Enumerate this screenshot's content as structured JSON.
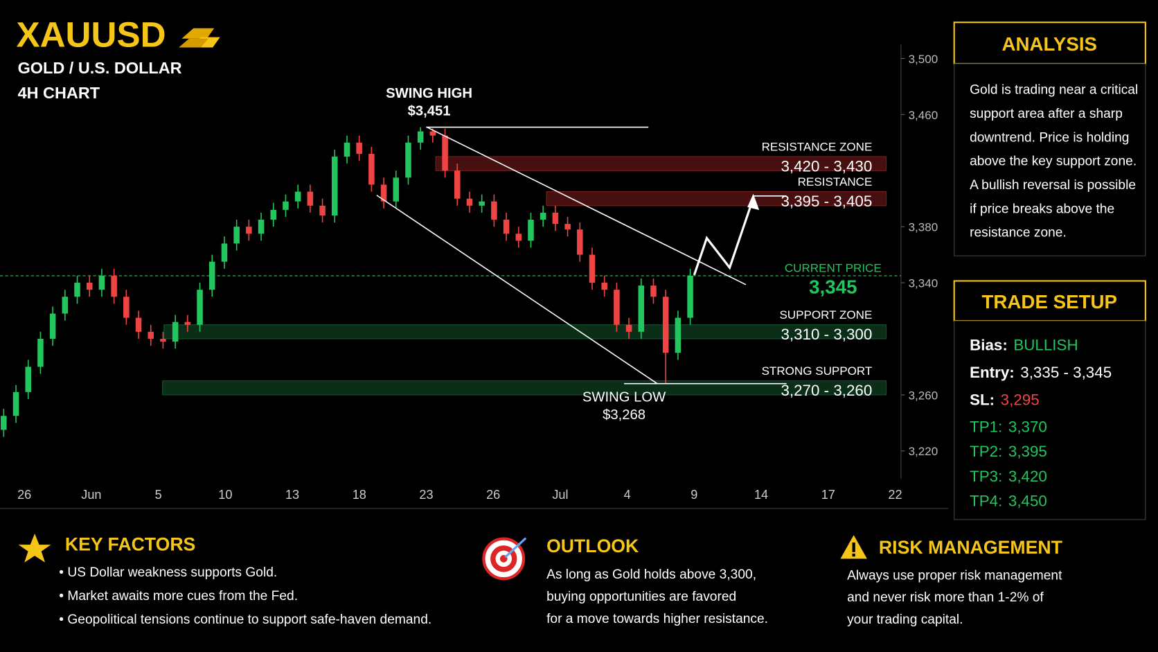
{
  "header": {
    "title": "XAUUSD",
    "subtitle": "GOLD / U.S. DOLLAR",
    "timeframe": "4H CHART"
  },
  "chart_data": {
    "type": "candlestick",
    "categories": [
      "26",
      "Jun",
      "5",
      "10",
      "13",
      "18",
      "23",
      "26",
      "Jul",
      "4",
      "9",
      "14",
      "17",
      "22"
    ],
    "open": [
      3235,
      3245,
      3262,
      3280,
      3300,
      3318,
      3330,
      3340,
      3335,
      3345,
      3330,
      3315,
      3305,
      3300,
      3298,
      3312,
      3310,
      3335,
      3355,
      3368,
      3380,
      3375,
      3385,
      3392,
      3398,
      3405,
      3395,
      3388,
      3430,
      3440,
      3432,
      3410,
      3398,
      3415,
      3440,
      3448,
      3445,
      3420,
      3400,
      3395,
      3398,
      3385,
      3375,
      3370,
      3385,
      3390,
      3382,
      3378,
      3360,
      3340,
      3335,
      3310,
      3305,
      3338,
      3330,
      3290,
      3315
    ],
    "high": [
      3250,
      3267,
      3285,
      3305,
      3323,
      3335,
      3345,
      3345,
      3350,
      3350,
      3335,
      3320,
      3310,
      3305,
      3317,
      3317,
      3340,
      3360,
      3373,
      3385,
      3385,
      3390,
      3397,
      3403,
      3410,
      3410,
      3400,
      3435,
      3445,
      3445,
      3437,
      3415,
      3420,
      3445,
      3451,
      3450,
      3450,
      3425,
      3405,
      3403,
      3403,
      3390,
      3380,
      3390,
      3395,
      3395,
      3387,
      3383,
      3365,
      3345,
      3340,
      3315,
      3343,
      3343,
      3335,
      3320,
      3350
    ],
    "low": [
      3230,
      3240,
      3257,
      3275,
      3295,
      3313,
      3325,
      3330,
      3330,
      3325,
      3310,
      3300,
      3295,
      3293,
      3293,
      3305,
      3305,
      3330,
      3350,
      3363,
      3370,
      3370,
      3380,
      3387,
      3393,
      3390,
      3383,
      3383,
      3425,
      3427,
      3405,
      3393,
      3393,
      3410,
      3435,
      3440,
      3415,
      3395,
      3390,
      3390,
      3380,
      3370,
      3365,
      3365,
      3380,
      3377,
      3373,
      3355,
      3335,
      3330,
      3305,
      3300,
      3300,
      3325,
      3268,
      3285,
      3310
    ],
    "close": [
      3245,
      3262,
      3280,
      3300,
      3318,
      3330,
      3340,
      3335,
      3345,
      3330,
      3315,
      3305,
      3300,
      3298,
      3312,
      3310,
      3335,
      3355,
      3368,
      3380,
      3375,
      3385,
      3392,
      3398,
      3405,
      3395,
      3388,
      3430,
      3440,
      3432,
      3410,
      3398,
      3415,
      3440,
      3448,
      3445,
      3420,
      3400,
      3395,
      3398,
      3385,
      3375,
      3370,
      3385,
      3390,
      3382,
      3378,
      3360,
      3340,
      3335,
      3310,
      3305,
      3338,
      3330,
      3290,
      3315,
      3345
    ],
    "up_color": "#22c55e",
    "down_color": "#ef4444",
    "ylim": [
      3200,
      3510
    ],
    "yticks": [
      {
        "value": 3220,
        "label": "3,220"
      },
      {
        "value": 3260,
        "label": "3,260"
      },
      {
        "value": 3340,
        "label": "3,340"
      },
      {
        "value": 3380,
        "label": "3,380"
      },
      {
        "value": 3460,
        "label": "3,460"
      },
      {
        "value": 3500,
        "label": "3,500"
      }
    ],
    "zones": [
      {
        "name": "RESISTANCE ZONE",
        "low": 3420,
        "high": 3430,
        "label": "3,420 - 3,430",
        "color": "#7f1d1d"
      },
      {
        "name": "RESISTANCE",
        "low": 3395,
        "high": 3405,
        "label": "3,395 - 3,405",
        "color": "#7f1d1d"
      },
      {
        "name": "SUPPORT ZONE",
        "low": 3300,
        "high": 3310,
        "label": "3,310 - 3,300",
        "color": "#14532d"
      },
      {
        "name": "STRONG SUPPORT",
        "low": 3260,
        "high": 3270,
        "label": "3,270 - 3,260",
        "color": "#14532d"
      }
    ],
    "swing_high": {
      "name": "SWING HIGH",
      "value": 3451,
      "label": "$3,451"
    },
    "swing_low": {
      "name": "SWING LOW",
      "value": 3268,
      "label": "$3,268"
    },
    "current_price": {
      "name": "CURRENT PRICE",
      "value": 3345,
      "label": "3,345",
      "color": "#22c55e"
    }
  },
  "analysis": {
    "title": "ANALYSIS",
    "lines": [
      "Gold is trading near a critical",
      "support area after a sharp",
      "downtrend. Price is holding",
      "above the key support zone.",
      "A bullish reversal is possible",
      "if price breaks above the",
      "resistance zone."
    ]
  },
  "trade_setup": {
    "title": "TRADE SETUP",
    "rows": [
      {
        "label": "Bias:",
        "value": "BULLISH",
        "color": "#22c55e"
      },
      {
        "label": "Entry:",
        "value": "3,335 - 3,345",
        "color": "#ffffff"
      },
      {
        "label": "SL:",
        "value": "3,295",
        "color": "#ef4444"
      },
      {
        "label": "TP1:",
        "value": "3,370",
        "color": "#22c55e"
      },
      {
        "label": "TP2:",
        "value": "3,395",
        "color": "#22c55e"
      },
      {
        "label": "TP3:",
        "value": "3,420",
        "color": "#22c55e"
      },
      {
        "label": "TP4:",
        "value": "3,450",
        "color": "#22c55e"
      }
    ]
  },
  "key_factors": {
    "title": "KEY FACTORS",
    "items": [
      "• US Dollar weakness supports Gold.",
      "• Market awaits more cues from the Fed.",
      "• Geopolitical tensions continue to support safe-haven demand."
    ]
  },
  "outlook": {
    "title": "OUTLOOK",
    "lines": [
      "As long as Gold holds above 3,300,",
      "buying opportunities are favored",
      "for a move towards higher resistance."
    ]
  },
  "risk_management": {
    "title": "RISK MANAGEMENT",
    "lines": [
      "Always use proper risk management",
      "and never risk more than 1-2% of",
      "your trading capital."
    ]
  }
}
